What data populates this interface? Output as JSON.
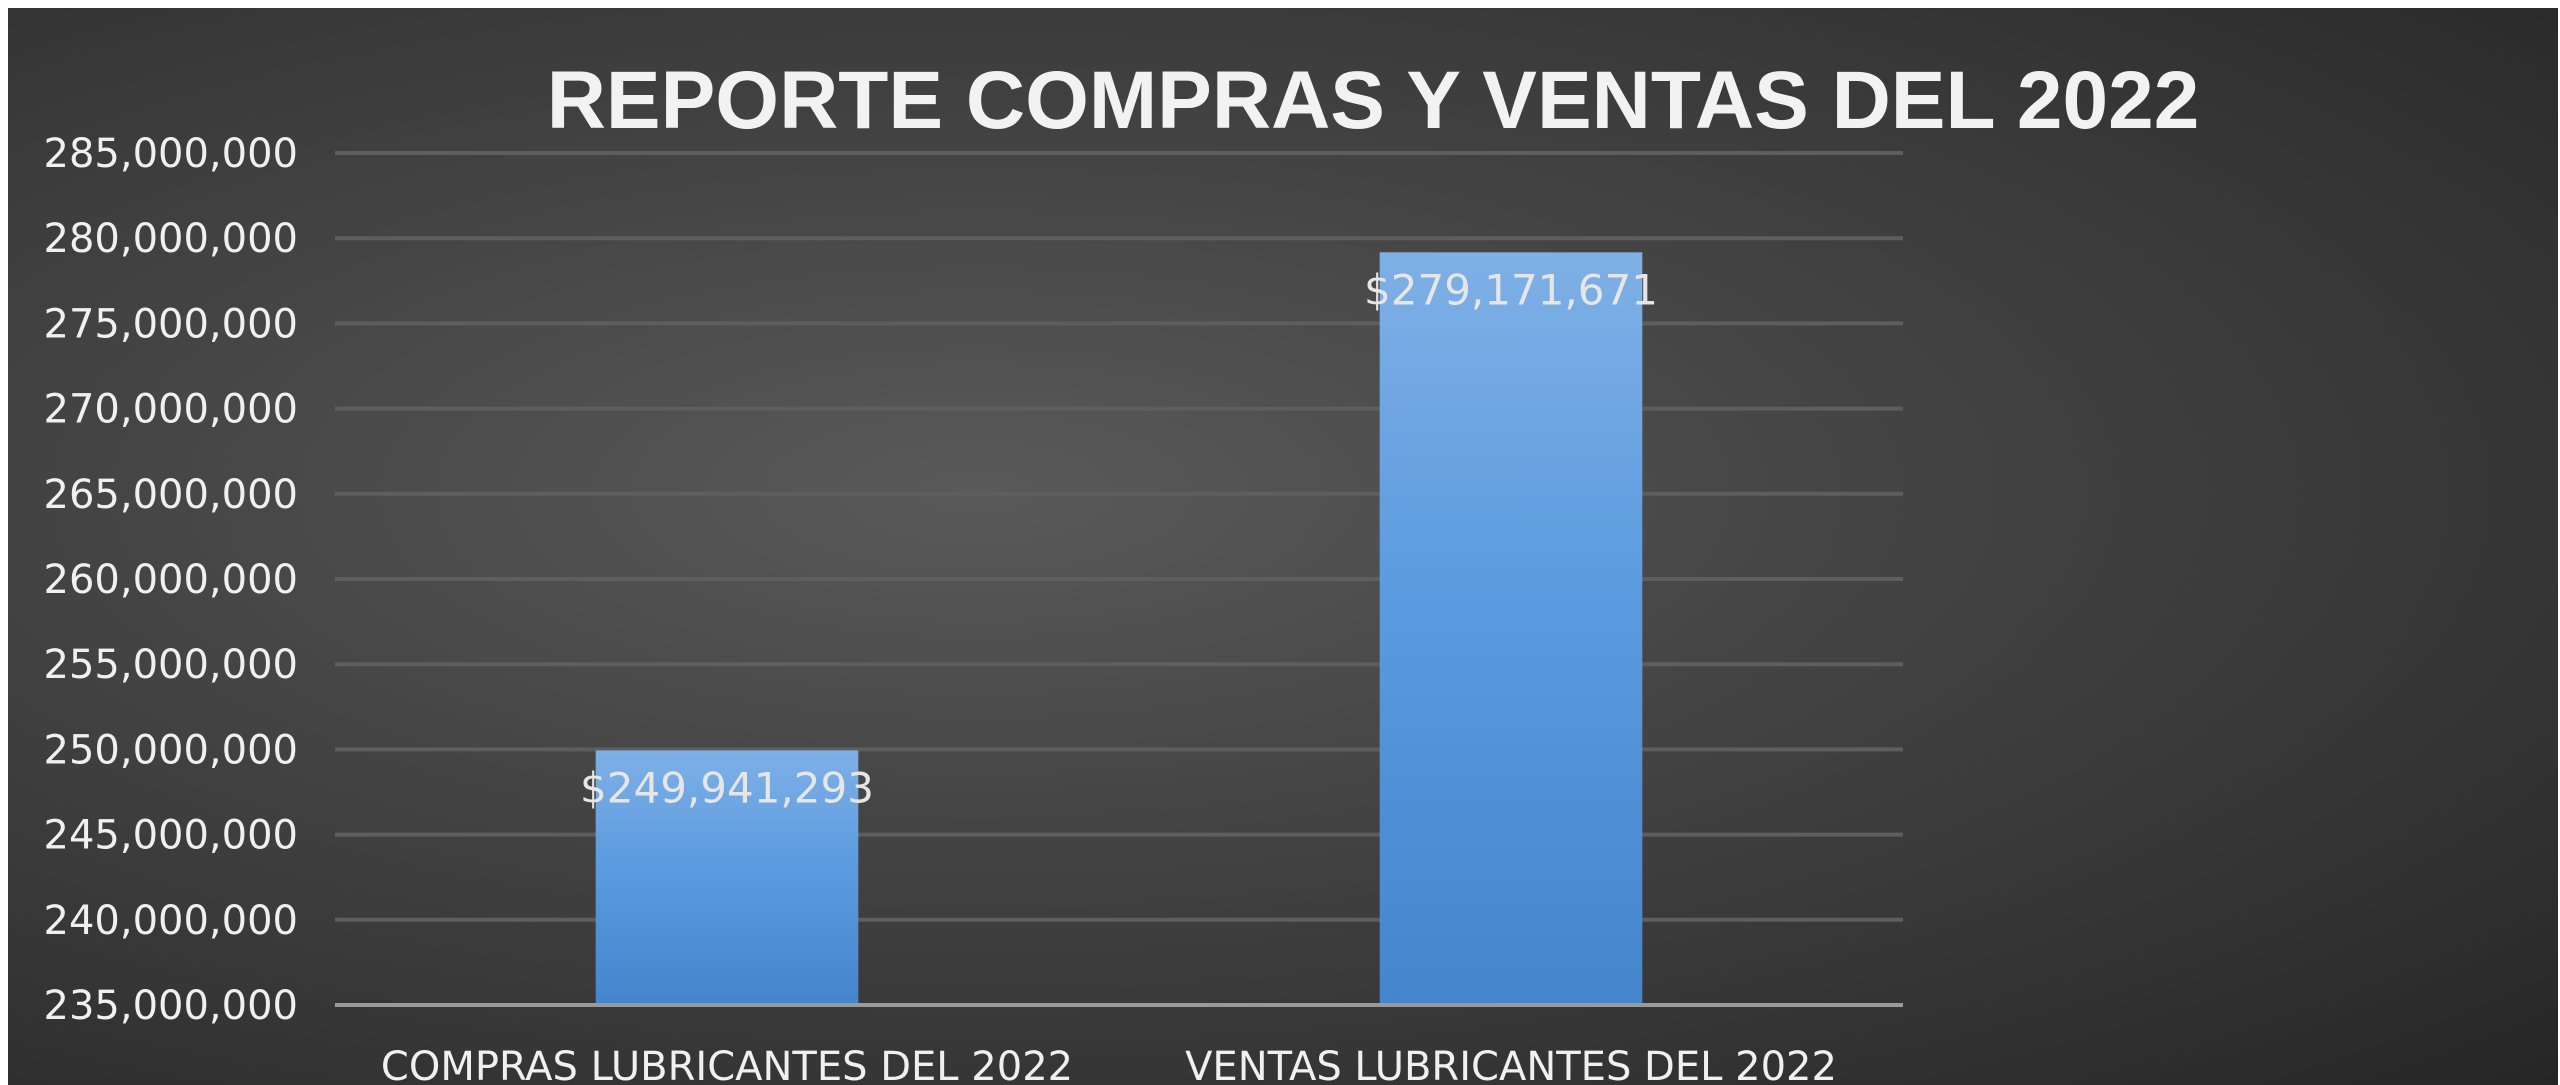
{
  "chart_data": {
    "type": "bar",
    "title": "REPORTE COMPRAS Y VENTAS DEL 2022",
    "categories": [
      "COMPRAS LUBRICANTES DEL 2022",
      "VENTAS LUBRICANTES DEL 2022"
    ],
    "values": [
      249941293,
      279171671
    ],
    "data_labels": [
      "$249,941,293",
      "$279,171,671"
    ],
    "ylim": [
      235000000,
      285000000
    ],
    "ytick_step": 5000000,
    "ytick_labels": [
      "235,000,000",
      "240,000,000",
      "245,000,000",
      "250,000,000",
      "255,000,000",
      "260,000,000",
      "265,000,000",
      "270,000,000",
      "275,000,000",
      "280,000,000",
      "285,000,000"
    ],
    "xlabel": "",
    "ylabel": "",
    "grid": true,
    "legend": "none",
    "colors": {
      "bar_top": "#7fb0e6",
      "bar_mid": "#5b9bdf",
      "bar_bottom": "#4485cc",
      "background": "#3d3d3d",
      "text": "#f0f0f0"
    }
  }
}
